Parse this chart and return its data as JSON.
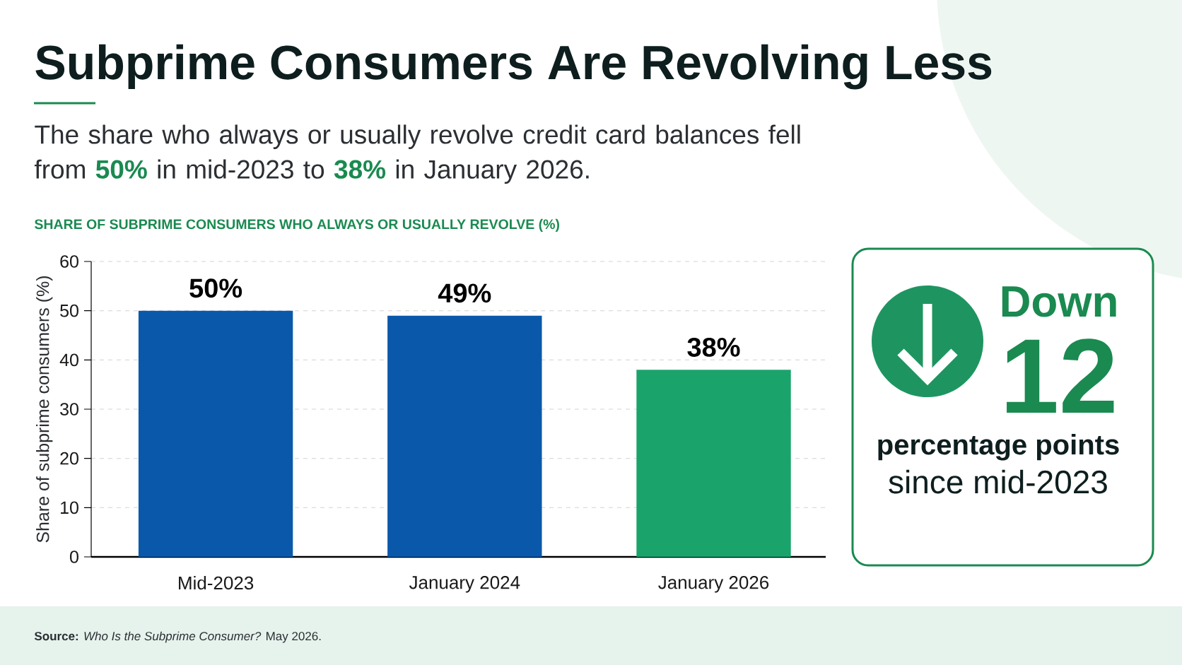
{
  "chart_data": [
    {
      "type": "bar",
      "title": "Subprime Consumers Are Revolving Less",
      "subtitle": "The share who always or usually revolve credit card balances fell from **50%** in mid-2023 to **38%** in January 2026.",
      "ylabel": "Share of subprime consumers (%)",
      "categories": [
        "Mid-2023",
        "January 2024",
        "January 2026"
      ],
      "values": [
        50,
        49,
        38
      ],
      "colors": [
        "#0a58aa",
        "#0a58aa",
        "#1ba36c"
      ],
      "value_labels": [
        "50%",
        "49%",
        "38%"
      ],
      "ylim": [
        0,
        60
      ],
      "yticks": [
        0,
        10,
        20,
        30,
        40,
        50,
        60
      ],
      "grid": "y",
      "annotations": [
        "SHARE OF SUBPRIME CONSUMERS WHO ALWAYS OR USUALLY REVOLVE (%)",
        "**Source:** *Who Is the Subprime Consumer?* May 2026."
      ]
    },
    {
      "type": "other",
      "annotations": [
        "Down",
        "12",
        "percentage points",
        "since mid-2023"
      ]
    }
  ]
}
